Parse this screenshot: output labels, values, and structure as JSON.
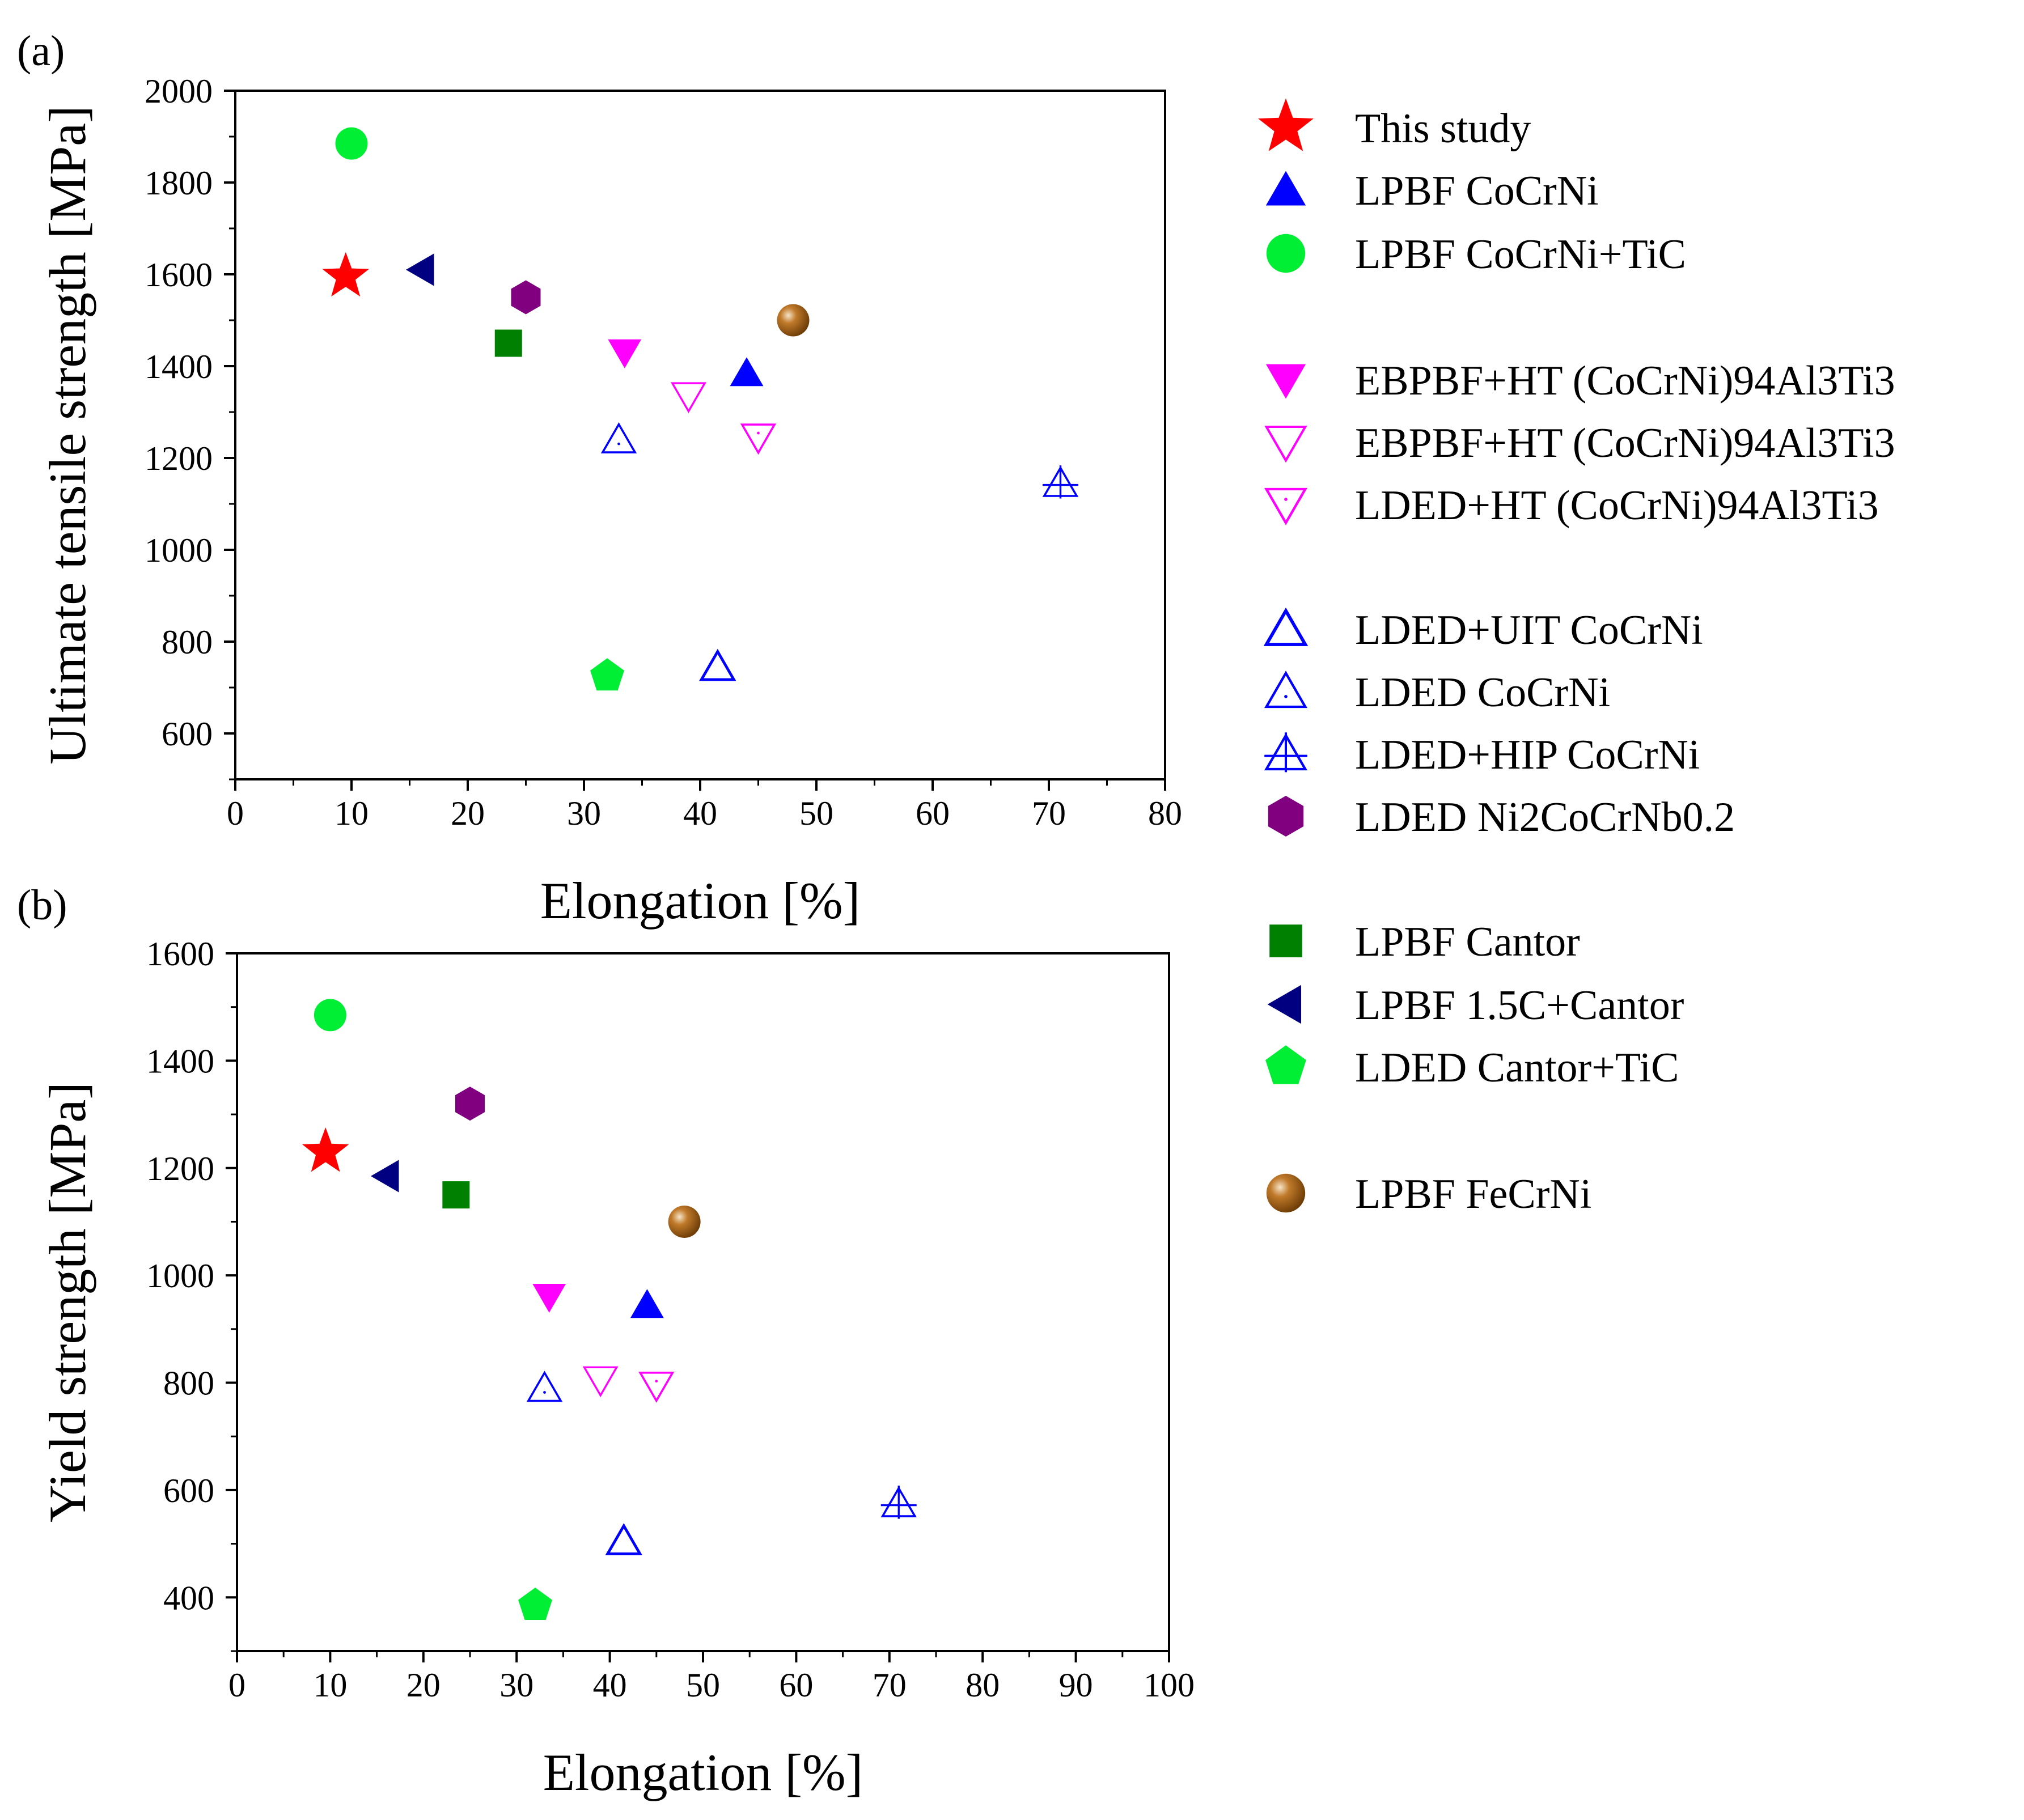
{
  "series_styles": {
    "This study": {
      "marker": "star",
      "color": "#ff0000",
      "filled": true
    },
    "LPBF CoCrNi": {
      "marker": "triangle-up",
      "color": "#0000ff",
      "filled": true
    },
    "LPBF CoCrNi+TiC": {
      "marker": "circle",
      "color": "#00ee33",
      "filled": true
    },
    "EBPBF+HT (CoCrNi)94Al3Ti3 #1": {
      "marker": "triangle-down",
      "color": "#ff00ff",
      "filled": true
    },
    "EBPBF+HT (CoCrNi)94Al3Ti3 #2": {
      "marker": "triangle-down",
      "color": "#ff00ff",
      "filled": false
    },
    "LDED+HT (CoCrNi)94Al3Ti3": {
      "marker": "triangle-down-dot",
      "color": "#ff00ff",
      "filled": false
    },
    "LDED+UIT CoCrNi": {
      "marker": "triangle-up",
      "color": "#0000ff",
      "filled": false
    },
    "LDED CoCrNi": {
      "marker": "triangle-up-dot",
      "color": "#0000ff",
      "filled": false
    },
    "LDED+HIP CoCrNi": {
      "marker": "triangle-up-plus",
      "color": "#0000ff",
      "filled": false
    },
    "LDED Ni2CoCrNb0.2": {
      "marker": "hexagon",
      "color": "#800080",
      "filled": true
    },
    "LPBF Cantor": {
      "marker": "square",
      "color": "#008000",
      "filled": true
    },
    "LPBF 1.5C+Cantor": {
      "marker": "triangle-left",
      "color": "#000080",
      "filled": true
    },
    "LDED Cantor+TiC": {
      "marker": "pentagon",
      "color": "#00ee33",
      "filled": true
    },
    "LPBF FeCrNi": {
      "marker": "sphere",
      "color": "#a0560a",
      "filled": true
    }
  },
  "chart_data": [
    {
      "type": "scatter",
      "panel_label": "(a)",
      "xlabel": "Elongation [%]",
      "ylabel": "Ultimate tensile strength [MPa]",
      "xlim": [
        0,
        80
      ],
      "ylim": [
        500,
        2000
      ],
      "xticks": [
        "0",
        "10",
        "20",
        "30",
        "40",
        "50",
        "60",
        "70",
        "80"
      ],
      "yticks": [
        "600",
        "800",
        "1000",
        "1200",
        "1400",
        "1600",
        "1800",
        "2000"
      ],
      "series": [
        {
          "name": "This study",
          "x": 9.5,
          "y": 1595
        },
        {
          "name": "LPBF CoCrNi",
          "x": 44,
          "y": 1385
        },
        {
          "name": "LPBF CoCrNi+TiC",
          "x": 10,
          "y": 1885
        },
        {
          "name": "EBPBF+HT (CoCrNi)94Al3Ti3 #1",
          "x": 33.5,
          "y": 1430
        },
        {
          "name": "EBPBF+HT (CoCrNi)94Al3Ti3 #2",
          "x": 39,
          "y": 1335
        },
        {
          "name": "LDED+HT (CoCrNi)94Al3Ti3",
          "x": 45,
          "y": 1245
        },
        {
          "name": "LDED+UIT CoCrNi",
          "x": 41.5,
          "y": 745
        },
        {
          "name": "LDED CoCrNi",
          "x": 33,
          "y": 1240
        },
        {
          "name": "LDED+HIP CoCrNi",
          "x": 71,
          "y": 1145
        },
        {
          "name": "LDED Ni2CoCrNb0.2",
          "x": 25,
          "y": 1550
        },
        {
          "name": "LPBF Cantor",
          "x": 23.5,
          "y": 1450
        },
        {
          "name": "LPBF 1.5C+Cantor",
          "x": 16,
          "y": 1610
        },
        {
          "name": "LDED Cantor+TiC",
          "x": 32,
          "y": 725
        },
        {
          "name": "LPBF FeCrNi",
          "x": 48,
          "y": 1500
        }
      ]
    },
    {
      "type": "scatter",
      "panel_label": "(b)",
      "xlabel": "Elongation [%]",
      "ylabel": "Yield strength [MPa]",
      "xlim": [
        0,
        100
      ],
      "ylim": [
        300,
        1600
      ],
      "xticks": [
        "0",
        "10",
        "20",
        "30",
        "40",
        "50",
        "60",
        "70",
        "80",
        "90",
        "100"
      ],
      "yticks": [
        "400",
        "600",
        "800",
        "1000",
        "1200",
        "1400",
        "1600"
      ],
      "series": [
        {
          "name": "This study",
          "x": 9.5,
          "y": 1230
        },
        {
          "name": "LPBF CoCrNi",
          "x": 44,
          "y": 945
        },
        {
          "name": "LPBF CoCrNi+TiC",
          "x": 10,
          "y": 1485
        },
        {
          "name": "EBPBF+HT (CoCrNi)94Al3Ti3 #1",
          "x": 33.5,
          "y": 960
        },
        {
          "name": "EBPBF+HT (CoCrNi)94Al3Ti3 #2",
          "x": 39,
          "y": 805
        },
        {
          "name": "LDED+HT (CoCrNi)94Al3Ti3",
          "x": 45,
          "y": 795
        },
        {
          "name": "LDED+UIT CoCrNi",
          "x": 41.5,
          "y": 505
        },
        {
          "name": "LDED CoCrNi",
          "x": 33,
          "y": 790
        },
        {
          "name": "LDED+HIP CoCrNi",
          "x": 71,
          "y": 575
        },
        {
          "name": "LDED Ni2CoCrNb0.2",
          "x": 25,
          "y": 1320
        },
        {
          "name": "LPBF Cantor",
          "x": 23.5,
          "y": 1150
        },
        {
          "name": "LPBF 1.5C+Cantor",
          "x": 16,
          "y": 1185
        },
        {
          "name": "LDED Cantor+TiC",
          "x": 32,
          "y": 385
        },
        {
          "name": "LPBF FeCrNi",
          "x": 48,
          "y": 1100
        }
      ]
    }
  ],
  "legend": {
    "placement": "right",
    "entries": [
      {
        "label": "This study",
        "style": "This study"
      },
      {
        "label": "LPBF CoCrNi",
        "style": "LPBF CoCrNi"
      },
      {
        "label": "LPBF CoCrNi+TiC",
        "style": "LPBF CoCrNi+TiC"
      },
      {
        "label": "EBPBF+HT (CoCrNi)94Al3Ti3",
        "style": "EBPBF+HT (CoCrNi)94Al3Ti3 #1"
      },
      {
        "label": "EBPBF+HT (CoCrNi)94Al3Ti3",
        "style": "EBPBF+HT (CoCrNi)94Al3Ti3 #2"
      },
      {
        "label": "LDED+HT (CoCrNi)94Al3Ti3",
        "style": "LDED+HT (CoCrNi)94Al3Ti3"
      },
      {
        "label": "LDED+UIT CoCrNi",
        "style": "LDED+UIT CoCrNi"
      },
      {
        "label": "LDED CoCrNi",
        "style": "LDED CoCrNi"
      },
      {
        "label": "LDED+HIP CoCrNi",
        "style": "LDED+HIP CoCrNi"
      },
      {
        "label": "LDED Ni2CoCrNb0.2",
        "style": "LDED Ni2CoCrNb0.2"
      },
      {
        "label": "LPBF Cantor",
        "style": "LPBF Cantor"
      },
      {
        "label": "LPBF 1.5C+Cantor",
        "style": "LPBF 1.5C+Cantor"
      },
      {
        "label": "LDED Cantor+TiC",
        "style": "LDED Cantor+TiC"
      },
      {
        "label": "LPBF FeCrNi",
        "style": "LPBF FeCrNi"
      }
    ]
  }
}
